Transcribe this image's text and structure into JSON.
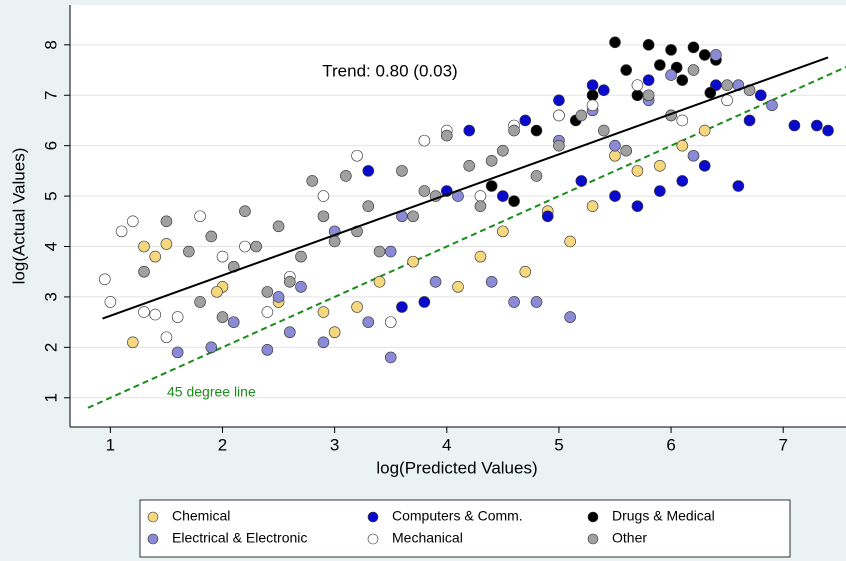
{
  "chart_data": {
    "type": "scatter",
    "x_label": "log(Predicted Values)",
    "y_label": "log(Actual Values)",
    "xlim": [
      0.64,
      7.56
    ],
    "xticks": [
      1,
      2,
      3,
      4,
      5,
      6,
      7
    ],
    "ylim": [
      0.42,
      8.79
    ],
    "yticks": [
      1,
      2,
      3,
      4,
      5,
      6,
      7,
      8
    ],
    "grid": true,
    "legend": "bottom",
    "annotations": [
      "Trend: 0.80 (0.03)",
      "45 degree line"
    ],
    "fit_line": {
      "x": [
        0.93,
        7.4
      ],
      "y": [
        2.57,
        7.75
      ],
      "color": "#000000"
    },
    "reference_line": {
      "x": [
        0.8,
        7.6
      ],
      "y": [
        0.8,
        7.6
      ],
      "color": "#1a8c1a"
    },
    "series": [
      {
        "name": "Chemical",
        "color": "#f5d77f",
        "x": [
          1.3,
          1.4,
          1.5,
          1.2,
          2.0,
          2.5,
          3.0,
          3.2,
          3.4,
          3.7,
          4.1,
          4.3,
          4.5,
          4.7,
          4.9,
          5.1,
          5.3,
          5.5,
          5.7,
          5.9,
          6.1,
          6.3,
          1.95,
          2.9
        ],
        "values": [
          4.0,
          3.8,
          4.05,
          2.1,
          3.2,
          2.9,
          2.3,
          2.8,
          3.3,
          3.7,
          3.2,
          3.8,
          4.3,
          3.5,
          4.7,
          4.1,
          4.8,
          5.8,
          5.5,
          5.6,
          6.0,
          6.3,
          3.1,
          2.7
        ]
      },
      {
        "name": "Computers & Comm.",
        "color": "#0a0acd",
        "x": [
          3.3,
          3.6,
          3.8,
          4.0,
          4.2,
          4.5,
          4.7,
          4.9,
          5.0,
          5.2,
          5.4,
          5.5,
          5.7,
          5.8,
          6.0,
          6.1,
          6.3,
          6.4,
          6.6,
          6.8,
          7.1,
          7.3,
          7.4,
          6.7,
          5.9,
          5.3
        ],
        "values": [
          5.5,
          2.8,
          2.9,
          5.1,
          6.3,
          5.0,
          6.5,
          4.6,
          6.9,
          5.3,
          7.1,
          5.0,
          4.8,
          7.3,
          6.6,
          5.3,
          5.6,
          7.2,
          5.2,
          7.0,
          6.4,
          6.4,
          6.3,
          6.5,
          5.1,
          7.2
        ]
      },
      {
        "name": "Drugs & Medical",
        "color": "#000000",
        "x": [
          4.4,
          4.8,
          5.0,
          5.3,
          5.5,
          5.6,
          5.8,
          5.9,
          6.0,
          6.1,
          6.2,
          6.3,
          6.4,
          5.7,
          6.05,
          6.35,
          4.6,
          5.15
        ],
        "values": [
          5.2,
          6.3,
          6.6,
          7.0,
          8.05,
          7.5,
          8.0,
          7.6,
          7.9,
          7.3,
          7.95,
          7.8,
          7.7,
          7.0,
          7.55,
          7.05,
          4.9,
          6.5
        ]
      },
      {
        "name": "Electrical & Electronic",
        "color": "#8a8ad6",
        "x": [
          1.6,
          1.9,
          2.1,
          2.4,
          2.6,
          2.7,
          2.9,
          3.0,
          3.3,
          3.5,
          3.6,
          3.9,
          4.1,
          4.4,
          4.6,
          4.8,
          5.0,
          5.1,
          5.3,
          5.5,
          5.8,
          6.0,
          6.2,
          6.4,
          6.6,
          6.9,
          2.5,
          3.5
        ],
        "values": [
          1.9,
          2.0,
          2.5,
          1.95,
          2.3,
          3.2,
          2.1,
          4.3,
          2.5,
          1.8,
          4.6,
          3.3,
          5.0,
          3.3,
          2.9,
          2.9,
          6.1,
          2.6,
          6.7,
          6.0,
          6.9,
          7.4,
          5.8,
          7.8,
          7.2,
          6.8,
          3.0,
          3.9
        ]
      },
      {
        "name": "Mechanical",
        "color": "#ffffff",
        "x": [
          0.95,
          1.1,
          1.2,
          1.3,
          1.5,
          1.6,
          1.8,
          2.0,
          2.2,
          2.4,
          2.6,
          2.9,
          3.2,
          3.5,
          3.8,
          4.0,
          4.3,
          4.6,
          5.0,
          5.3,
          5.7,
          6.1,
          6.5,
          1.0,
          1.4
        ],
        "values": [
          3.35,
          4.3,
          4.5,
          2.7,
          2.2,
          2.6,
          4.6,
          3.8,
          4.0,
          2.7,
          3.4,
          5.0,
          5.8,
          2.5,
          6.1,
          6.3,
          5.0,
          6.4,
          6.6,
          6.8,
          7.2,
          6.5,
          6.9,
          2.9,
          2.65
        ]
      },
      {
        "name": "Other",
        "color": "#a0a0a0",
        "x": [
          1.3,
          1.5,
          1.7,
          1.9,
          2.0,
          2.2,
          2.3,
          2.5,
          2.6,
          2.8,
          2.9,
          3.0,
          3.1,
          3.3,
          3.4,
          3.6,
          3.7,
          3.9,
          4.0,
          4.2,
          4.3,
          4.5,
          4.6,
          4.8,
          5.0,
          5.2,
          5.4,
          5.6,
          5.8,
          6.0,
          6.2,
          6.5,
          6.7,
          2.1,
          2.7,
          3.2,
          3.8,
          4.4,
          1.8,
          2.4
        ],
        "values": [
          3.5,
          4.5,
          3.9,
          4.2,
          2.6,
          4.7,
          4.0,
          4.4,
          3.3,
          5.3,
          4.6,
          4.1,
          5.4,
          4.8,
          3.9,
          5.5,
          4.6,
          5.0,
          6.2,
          5.6,
          4.8,
          5.9,
          6.3,
          5.4,
          6.0,
          6.6,
          6.3,
          5.9,
          7.0,
          6.6,
          7.5,
          7.2,
          7.1,
          3.6,
          3.8,
          4.3,
          5.1,
          5.7,
          2.9,
          3.1
        ]
      }
    ]
  }
}
